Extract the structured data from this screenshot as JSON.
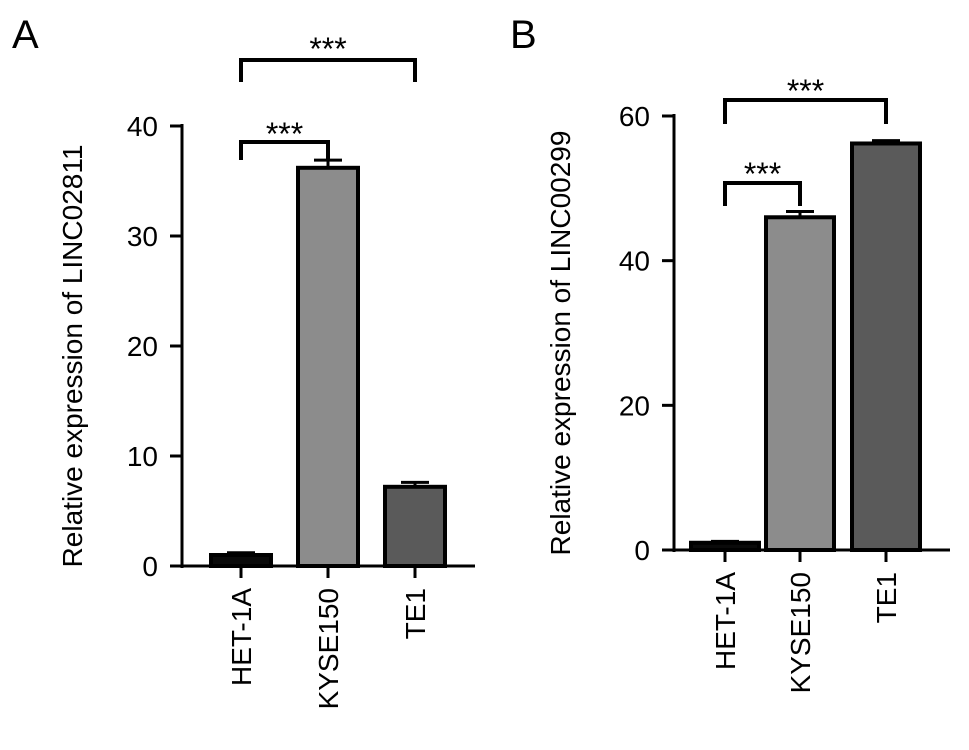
{
  "chart_data": [
    {
      "type": "bar",
      "panel": "A",
      "ylabel": "Relative expression of LINC02811",
      "categories": [
        "HET-1A",
        "KYSE150",
        "TE1"
      ],
      "values": [
        1.0,
        36.2,
        7.2
      ],
      "errors": [
        0.2,
        0.7,
        0.4
      ],
      "bar_colors": [
        "#0a0a0a",
        "#8c8c8c",
        "#5a5a5a"
      ],
      "ylim": [
        0,
        40
      ],
      "yticks": [
        "0",
        "10",
        "20",
        "30",
        "40"
      ],
      "significance": [
        {
          "from": "HET-1A",
          "to": "KYSE150",
          "label": "***"
        },
        {
          "from": "HET-1A",
          "to": "TE1",
          "label": "***"
        }
      ]
    },
    {
      "type": "bar",
      "panel": "B",
      "ylabel": "Relative expression of LINC00299",
      "categories": [
        "HET-1A",
        "KYSE150",
        "TE1"
      ],
      "values": [
        1.0,
        46.0,
        56.2
      ],
      "errors": [
        0.2,
        0.8,
        0.4
      ],
      "bar_colors": [
        "#0a0a0a",
        "#8c8c8c",
        "#5a5a5a"
      ],
      "ylim": [
        0,
        60
      ],
      "yticks": [
        "0",
        "20",
        "40",
        "60"
      ],
      "significance": [
        {
          "from": "HET-1A",
          "to": "KYSE150",
          "label": "***"
        },
        {
          "from": "HET-1A",
          "to": "TE1",
          "label": "***"
        }
      ]
    }
  ]
}
